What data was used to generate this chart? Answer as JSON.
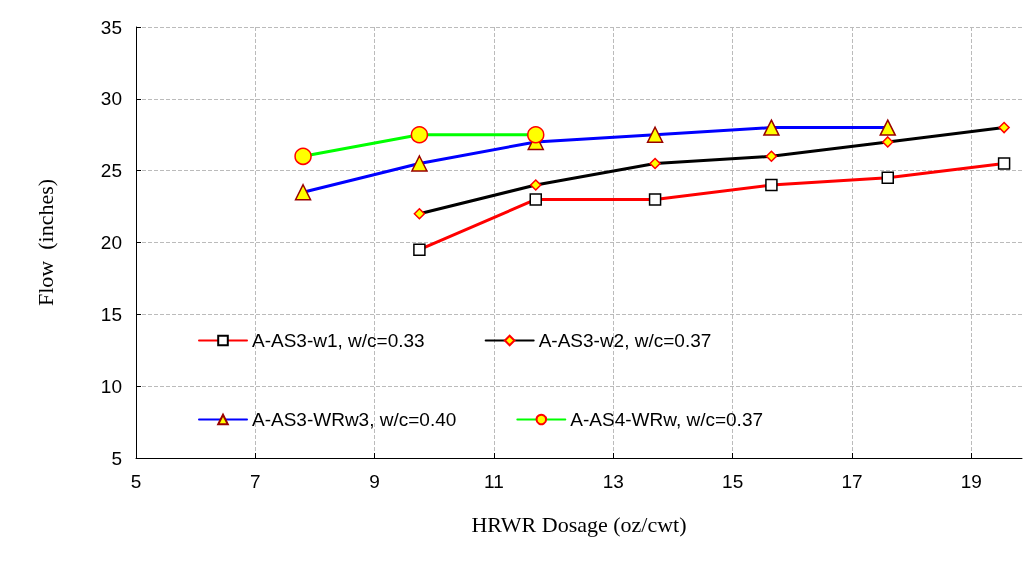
{
  "chart_data": {
    "type": "line",
    "xlabel": "HRWR Dosage (oz/cwt)",
    "ylabel": "Flow  (inches)",
    "xlim": [
      5,
      19.85
    ],
    "xticks": [
      5,
      7,
      9,
      11,
      13,
      15,
      17,
      19
    ],
    "ylim": [
      5,
      35
    ],
    "yticks": [
      5,
      10,
      15,
      20,
      25,
      30,
      35
    ],
    "grid": true,
    "legend": "bottom",
    "line_style": "solid",
    "series": [
      {
        "name": "A-AS3-w1, w/c=0.33",
        "color": "#ff0000",
        "marker": "square",
        "x": [
          9.75,
          11.7,
          13.7,
          15.65,
          17.6,
          19.55
        ],
        "values": [
          19.5,
          23,
          23,
          24,
          24.5,
          25.5
        ]
      },
      {
        "name": "A-AS3-w2, w/c=0.37",
        "color": "#000000",
        "marker": "diamond",
        "x": [
          9.75,
          11.7,
          13.7,
          15.65,
          17.6,
          19.55
        ],
        "values": [
          22,
          24,
          25.5,
          26,
          27,
          28
        ]
      },
      {
        "name": "A-AS3-WRw3, w/c=0.40",
        "color": "#0000ff",
        "marker": "triangle",
        "x": [
          7.8,
          9.75,
          11.7,
          13.7,
          15.65,
          17.6
        ],
        "values": [
          23.5,
          25.5,
          27,
          27.5,
          28,
          28
        ]
      },
      {
        "name": "A-AS4-WRw, w/c=0.37",
        "color": "#00ff00",
        "marker": "circle",
        "x": [
          7.8,
          9.75,
          11.7
        ],
        "values": [
          26,
          27.5,
          27.5
        ]
      }
    ]
  }
}
